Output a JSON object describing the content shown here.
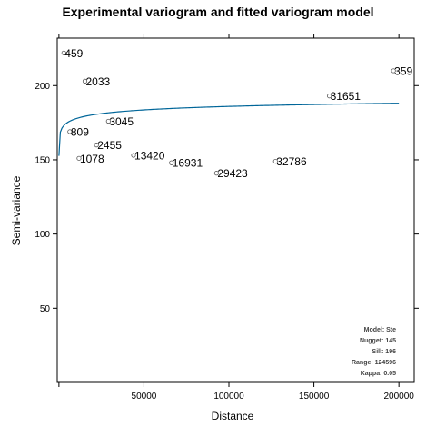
{
  "chart_data": {
    "type": "scatter",
    "title": "Experimental variogram and fitted variogram model",
    "xlabel": "Distance",
    "ylabel": "Semi-variance",
    "xlim": [
      -1000,
      209000
    ],
    "ylim": [
      0,
      232
    ],
    "x_ticks": [
      50000,
      100000,
      150000,
      200000
    ],
    "y_ticks": [
      50,
      100,
      150,
      200
    ],
    "points": [
      {
        "x": 2900,
        "y": 222,
        "label": "459"
      },
      {
        "x": 15300,
        "y": 203,
        "label": "2033"
      },
      {
        "x": 6400,
        "y": 169,
        "label": "809"
      },
      {
        "x": 29100,
        "y": 176,
        "label": "3045"
      },
      {
        "x": 22100,
        "y": 160,
        "label": "2455"
      },
      {
        "x": 11800,
        "y": 151,
        "label": "1078"
      },
      {
        "x": 43900,
        "y": 153,
        "label": "13420"
      },
      {
        "x": 66200,
        "y": 148,
        "label": "16931"
      },
      {
        "x": 92700,
        "y": 141,
        "label": "29423"
      },
      {
        "x": 127400,
        "y": 149,
        "label": "32786"
      },
      {
        "x": 159100,
        "y": 193,
        "label": "31651"
      },
      {
        "x": 196800,
        "y": 210,
        "label": "359"
      }
    ],
    "model": {
      "name": "Ste",
      "nugget": 145,
      "sill": 196,
      "range": 124596,
      "kappa": 0.05
    },
    "line_color": "#006699",
    "legend_position": "bottom-right"
  },
  "info": {
    "model": "Model: Ste",
    "nugget": "Nugget: 145",
    "sill": "Sill: 196",
    "range": "Range: 124596",
    "kappa": "Kappa: 0.05"
  }
}
